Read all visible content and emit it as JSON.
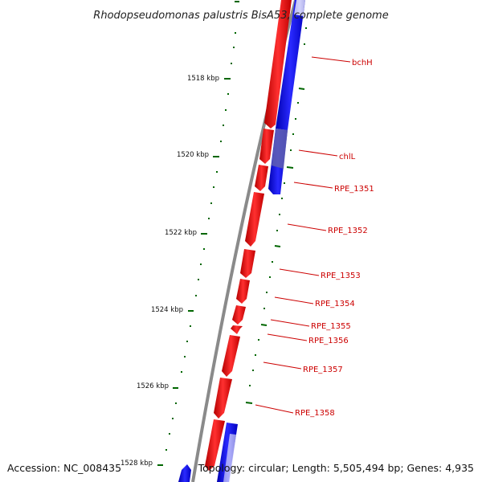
{
  "title": "Rhodopseudomonas palustris BisA53, complete genome",
  "accession": "Accession: NC_008435",
  "topology": "Topology: circular; Length: 5,505,494 bp; Genes: 4,935",
  "colors": {
    "forward_strand": "#ff0000",
    "reverse_strand": "#0000ff",
    "backbone": "#888888",
    "ticks": "#006600",
    "labels": "#cc0000"
  },
  "scale_labels": [
    "1518 kbp",
    "1520 kbp",
    "1522 kbp",
    "1524 kbp",
    "1526 kbp",
    "1528 kbp"
  ],
  "genes": [
    {
      "name": "bchH",
      "strand": "reverse"
    },
    {
      "name": "chlL",
      "strand": "reverse"
    },
    {
      "name": "RPE_1351",
      "strand": "forward"
    },
    {
      "name": "RPE_1352",
      "strand": "forward"
    },
    {
      "name": "RPE_1353",
      "strand": "forward"
    },
    {
      "name": "RPE_1354",
      "strand": "forward"
    },
    {
      "name": "RPE_1355",
      "strand": "forward"
    },
    {
      "name": "RPE_1356",
      "strand": "forward"
    },
    {
      "name": "RPE_1357",
      "strand": "forward"
    },
    {
      "name": "RPE_1358",
      "strand": "forward"
    }
  ]
}
